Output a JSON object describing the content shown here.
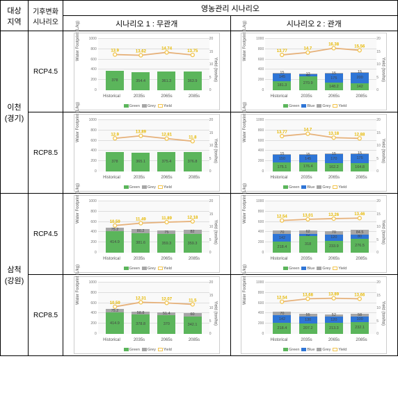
{
  "headers": {
    "region": "대상\n지역",
    "climate": "기후변화\n시나리오",
    "mgmt": "영농관리 시나리오",
    "s1": "시나리오 1 : 무관개",
    "s2": "시나리오 2 : 관개"
  },
  "regions": [
    {
      "name": "이천\n(경기)",
      "climates": [
        "RCP4.5",
        "RCP8.5"
      ]
    },
    {
      "name": "삼척\n(강원)",
      "climates": [
        "RCP4.5",
        "RCP8.5"
      ]
    }
  ],
  "categories": [
    "Historical",
    "2035s",
    "2065s",
    "2085s"
  ],
  "axes": {
    "y1_label": "Water Footprint (L/kg)",
    "y2_label": "Yield (ton/ha)",
    "y1_max": 1000,
    "y1_step": 200,
    "y2_max": 20,
    "y2_step": 5,
    "grid_color": "#dddddd",
    "bg": "#f9f9f9"
  },
  "colors": {
    "green": "#5bb55b",
    "blue": "#2e75d6",
    "grey": "#a6a6a6",
    "line": "#e6b17a",
    "marker": "#f2c44d",
    "text": "#e6b800"
  },
  "segments": {
    "s1": [
      {
        "k": "green",
        "label": "Green"
      },
      {
        "k": "grey",
        "label": "Grey"
      }
    ],
    "s2": [
      {
        "k": "green",
        "label": "Green"
      },
      {
        "k": "blue",
        "label": "Blue"
      },
      {
        "k": "grey",
        "label": "Grey"
      }
    ]
  },
  "charts": {
    "icheon_rcp45_s1": {
      "yields": [
        13.9,
        13.62,
        14.74,
        13.75
      ],
      "bars": [
        {
          "green": 378
        },
        {
          "green": 354.4
        },
        {
          "green": 361.3
        },
        {
          "green": 363.9
        }
      ]
    },
    "icheon_rcp45_s2": {
      "yields": [
        13.77,
        14.7,
        16.38,
        15.56
      ],
      "bars": [
        {
          "green": 181.3,
          "blue": 145,
          "grey": 15
        },
        {
          "green": 270.9,
          "blue": 40,
          "grey": 12
        },
        {
          "green": 148.2,
          "blue": 175,
          "grey": 15
        },
        {
          "green": 142,
          "blue": 200,
          "grey": 15
        }
      ]
    },
    "icheon_rcp85_s1": {
      "yields": [
        12.9,
        13.89,
        12.81,
        11.8
      ],
      "bars": [
        {
          "green": 378
        },
        {
          "green": 365.1
        },
        {
          "green": 375.4
        },
        {
          "green": 376.8
        }
      ]
    },
    "icheon_rcp85_s2": {
      "yields": [
        13.77,
        14.7,
        13.18,
        12.88
      ],
      "bars": [
        {
          "green": 175.1,
          "blue": 150,
          "grey": 15
        },
        {
          "green": 176.4,
          "blue": 145,
          "grey": 15
        },
        {
          "green": 162.2,
          "blue": 170,
          "grey": 15
        },
        {
          "green": 164.8,
          "blue": 175,
          "grey": 15
        }
      ]
    },
    "samcheok_rcp45_s1": {
      "yields": [
        10.59,
        11.49,
        11.89,
        12.18
      ],
      "bars": [
        {
          "green": 414.9,
          "grey": 75.2
        },
        {
          "green": 381.6,
          "grey": 80.2
        },
        {
          "green": 359.3,
          "grey": 75
        },
        {
          "green": 359.3,
          "grey": 82
        }
      ]
    },
    "samcheok_rcp45_s2": {
      "yields": [
        12.54,
        13.01,
        13.26,
        13.46
      ],
      "bars": [
        {
          "green": 218.4,
          "blue": 142,
          "grey": 70
        },
        {
          "green": 318,
          "blue": 52,
          "grey": 62
        },
        {
          "green": 233.9,
          "blue": 120,
          "grey": 70
        },
        {
          "green": 276.5,
          "blue": 80,
          "grey": 84.5
        }
      ]
    },
    "samcheok_rcp85_s1": {
      "yields": [
        10.59,
        12.31,
        12.07,
        11.5
      ],
      "bars": [
        {
          "green": 414.9,
          "grey": 75.2
        },
        {
          "green": 378.8,
          "grey": 58.8
        },
        {
          "green": 370,
          "grey": 51.4
        },
        {
          "green": 342.1,
          "grey": 60
        }
      ]
    },
    "samcheok_rcp85_s2": {
      "yields": [
        12.54,
        13.68,
        13.89,
        13.66
      ],
      "bars": [
        {
          "green": 218.4,
          "blue": 142,
          "grey": 70
        },
        {
          "green": 207.2,
          "blue": 130,
          "grey": 55
        },
        {
          "green": 213.3,
          "blue": 120,
          "grey": 52
        },
        {
          "green": 232.1,
          "blue": 100,
          "grey": 58
        }
      ]
    }
  }
}
